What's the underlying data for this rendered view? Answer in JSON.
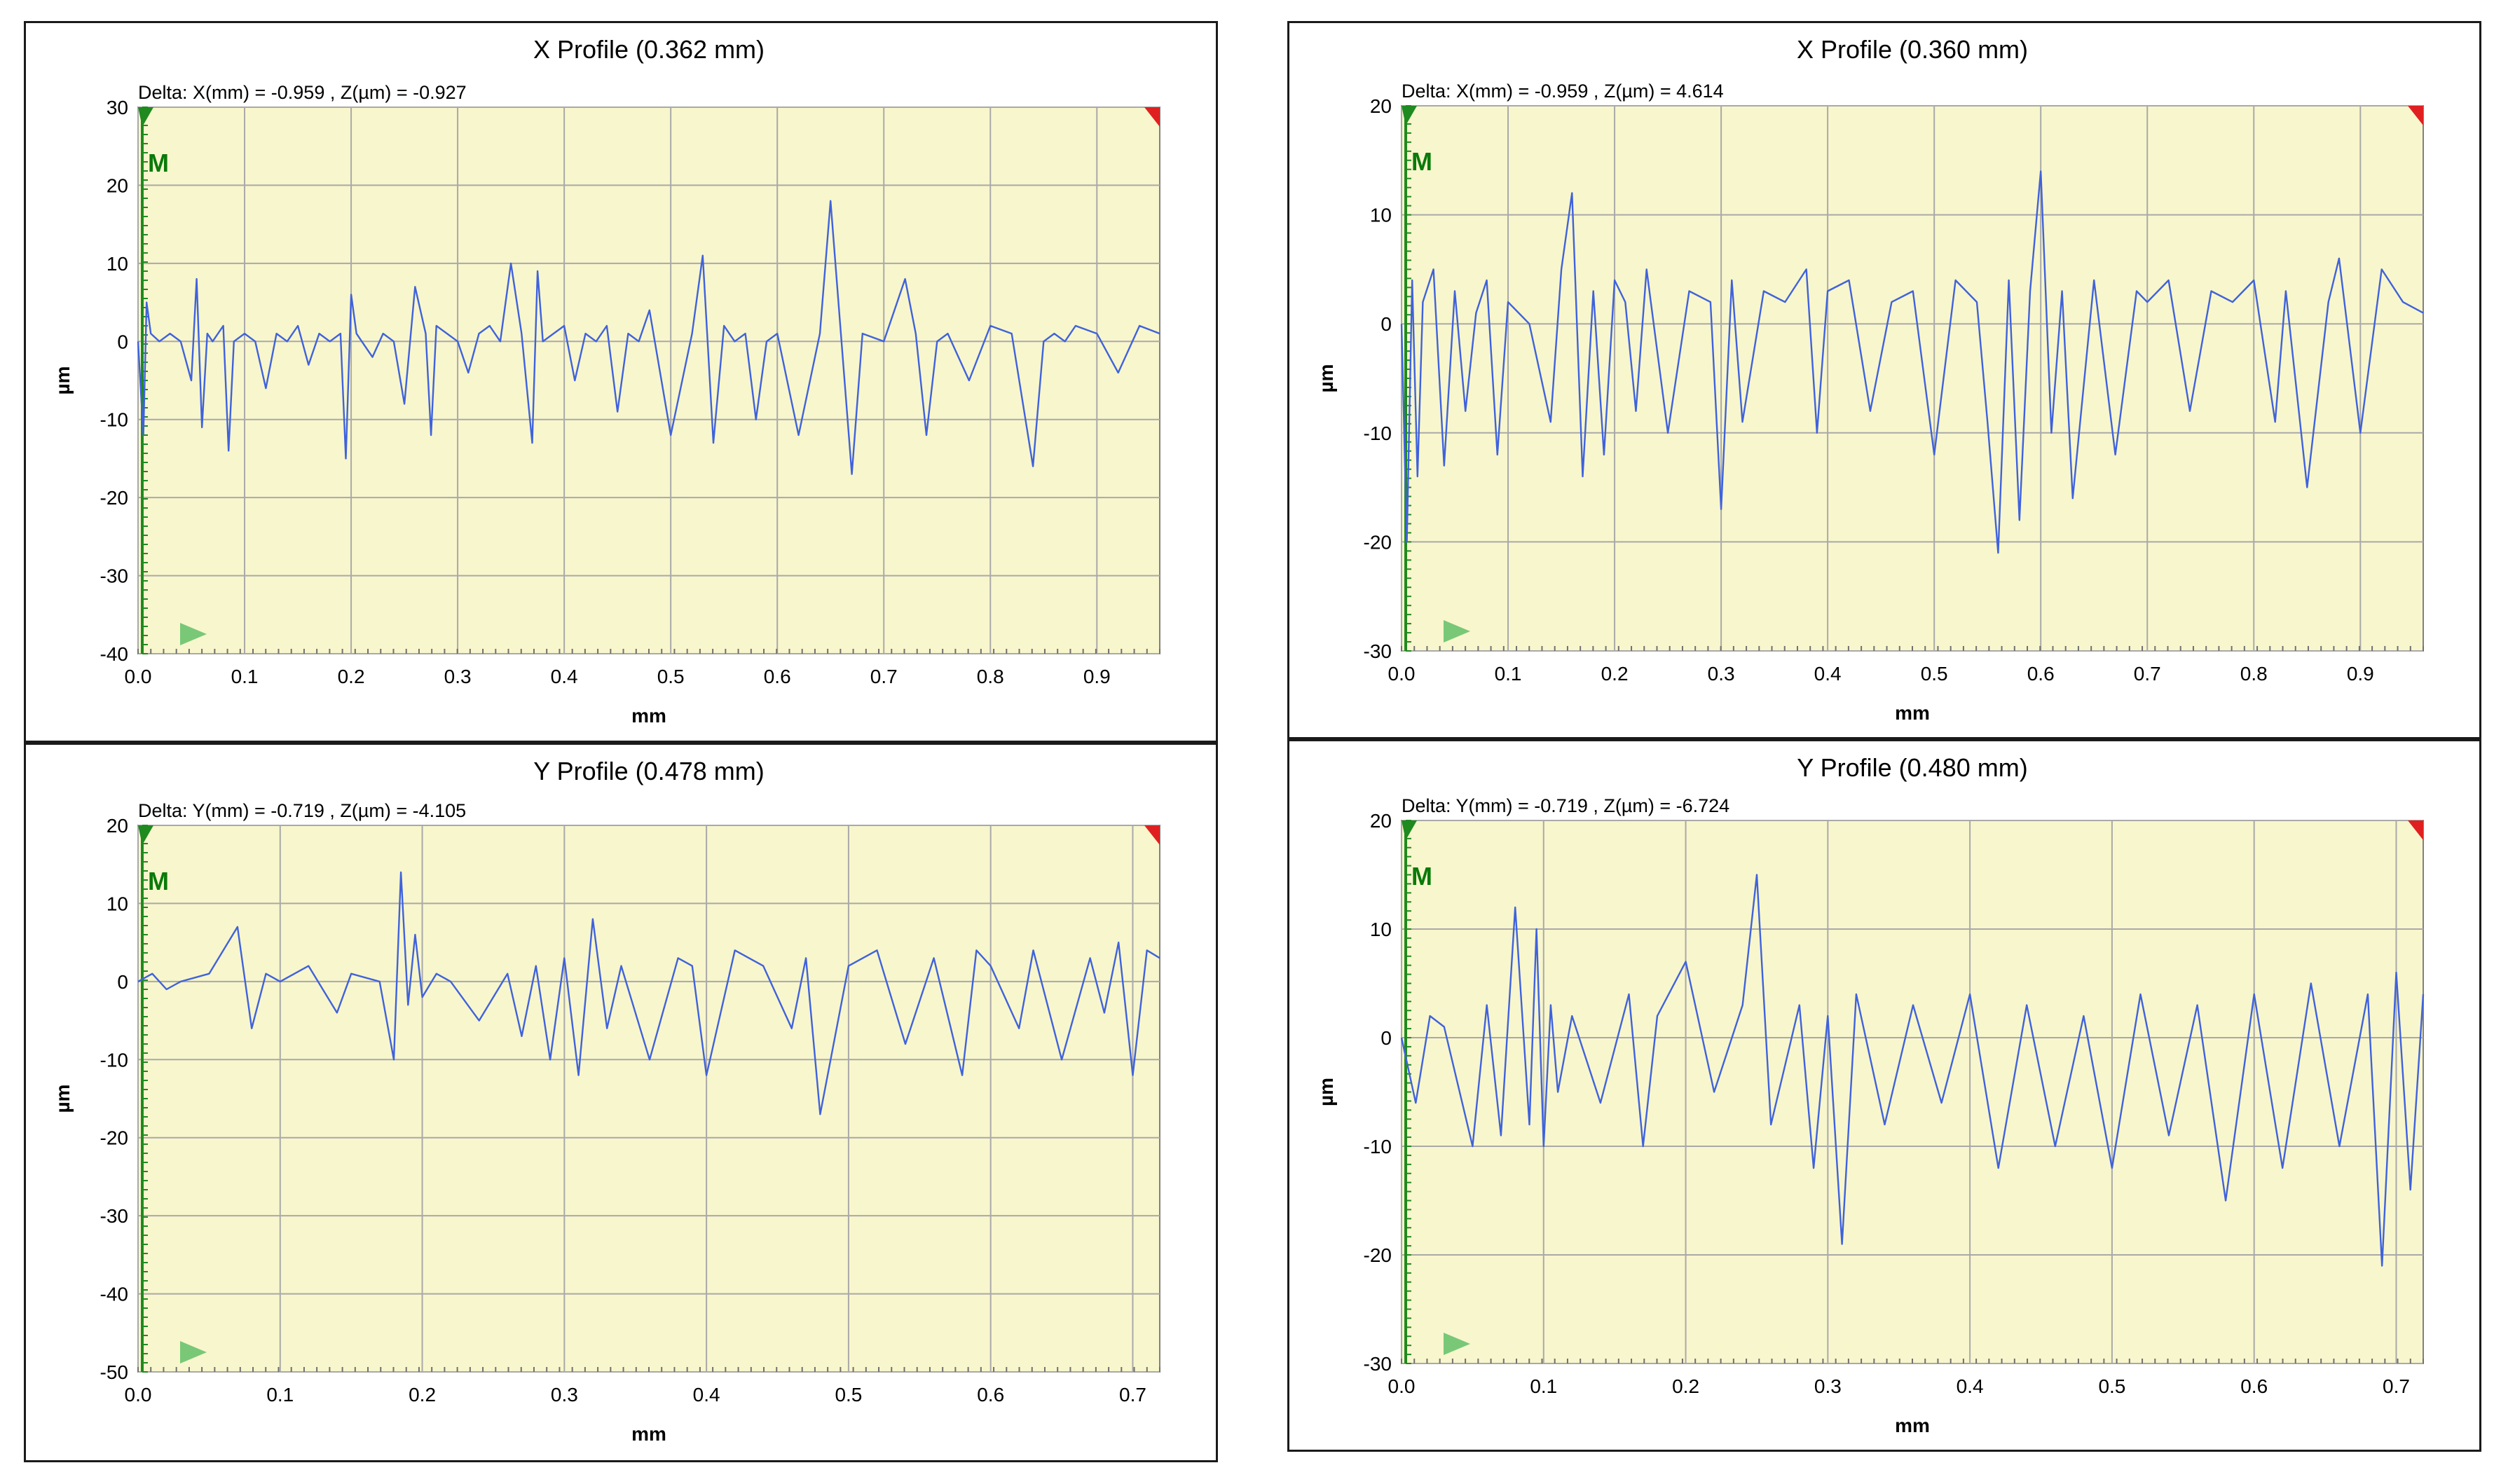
{
  "colors": {
    "plot_background": "#f8f6cc",
    "grid": "#a9a9a9",
    "line": "#3f62dc",
    "marker_green": "#1f8a1f",
    "marker_red": "#e02020",
    "play_marker": "#78c878"
  },
  "chart_data": [
    {
      "type": "line",
      "title": "X Profile (0.362 mm)",
      "delta": "Delta:  X(mm) = -0.959 ,  Z(µm) = -0.927",
      "xlabel": "mm",
      "ylabel": "µm",
      "xlim": [
        0,
        0.959
      ],
      "ylim": [
        -40,
        30
      ],
      "xticks": [
        0.0,
        0.1,
        0.2,
        0.3,
        0.4,
        0.5,
        0.6,
        0.7,
        0.8,
        0.9
      ],
      "xtick_labels": [
        "0.0",
        "0.1",
        "0.2",
        "0.3",
        "0.4",
        "0.5",
        "0.6",
        "0.7",
        "0.8",
        "0.9"
      ],
      "yticks": [
        30,
        20,
        10,
        0,
        -10,
        -20,
        -30,
        -40
      ],
      "ytick_labels": [
        "30",
        "20",
        "10",
        "0",
        "-10",
        "-20",
        "-30",
        "-40"
      ],
      "marker_label": "M",
      "grid": true,
      "x": [
        0,
        0.005,
        0.008,
        0.012,
        0.02,
        0.03,
        0.04,
        0.05,
        0.055,
        0.06,
        0.065,
        0.07,
        0.08,
        0.085,
        0.09,
        0.1,
        0.11,
        0.12,
        0.13,
        0.14,
        0.15,
        0.16,
        0.17,
        0.18,
        0.19,
        0.195,
        0.2,
        0.205,
        0.21,
        0.22,
        0.23,
        0.24,
        0.25,
        0.26,
        0.27,
        0.275,
        0.28,
        0.29,
        0.3,
        0.31,
        0.32,
        0.33,
        0.34,
        0.35,
        0.36,
        0.37,
        0.375,
        0.38,
        0.39,
        0.4,
        0.41,
        0.42,
        0.43,
        0.44,
        0.45,
        0.46,
        0.47,
        0.48,
        0.5,
        0.52,
        0.53,
        0.54,
        0.55,
        0.56,
        0.57,
        0.58,
        0.59,
        0.6,
        0.62,
        0.64,
        0.65,
        0.67,
        0.68,
        0.7,
        0.72,
        0.73,
        0.74,
        0.75,
        0.76,
        0.78,
        0.8,
        0.82,
        0.84,
        0.85,
        0.86,
        0.87,
        0.88,
        0.9,
        0.92,
        0.94,
        0.959
      ],
      "y": [
        0,
        -12,
        5,
        1,
        0,
        1,
        0,
        -5,
        8,
        -11,
        1,
        0,
        2,
        -14,
        0,
        1,
        0,
        -6,
        1,
        0,
        2,
        -3,
        1,
        0,
        1,
        -15,
        6,
        1,
        0,
        -2,
        1,
        0,
        -8,
        7,
        1,
        -12,
        2,
        1,
        0,
        -4,
        1,
        2,
        0,
        10,
        1,
        -13,
        9,
        0,
        1,
        2,
        -5,
        1,
        0,
        2,
        -9,
        1,
        0,
        4,
        -12,
        1,
        11,
        -13,
        2,
        0,
        1,
        -10,
        0,
        1,
        -12,
        1,
        18,
        -17,
        1,
        0,
        8,
        1,
        -12,
        0,
        1,
        -5,
        2,
        1,
        -16,
        0,
        1,
        0,
        2,
        1,
        -4,
        2,
        1
      ]
    },
    {
      "type": "line",
      "title": "X Profile (0.360 mm)",
      "delta": "Delta:  X(mm) = -0.959 ,  Z(µm) = 4.614",
      "xlabel": "mm",
      "ylabel": "µm",
      "xlim": [
        0,
        0.959
      ],
      "ylim": [
        -30,
        20
      ],
      "xticks": [
        0.0,
        0.1,
        0.2,
        0.3,
        0.4,
        0.5,
        0.6,
        0.7,
        0.8,
        0.9
      ],
      "xtick_labels": [
        "0.0",
        "0.1",
        "0.2",
        "0.3",
        "0.4",
        "0.5",
        "0.6",
        "0.7",
        "0.8",
        "0.9"
      ],
      "yticks": [
        20,
        10,
        0,
        -10,
        -20,
        -30
      ],
      "ytick_labels": [
        "20",
        "10",
        "0",
        "-10",
        "-20",
        "-30"
      ],
      "marker_label": "M",
      "grid": true,
      "x": [
        0,
        0.005,
        0.01,
        0.015,
        0.02,
        0.03,
        0.04,
        0.05,
        0.06,
        0.07,
        0.08,
        0.09,
        0.1,
        0.12,
        0.14,
        0.15,
        0.16,
        0.17,
        0.18,
        0.19,
        0.2,
        0.21,
        0.22,
        0.23,
        0.25,
        0.27,
        0.29,
        0.3,
        0.31,
        0.32,
        0.34,
        0.36,
        0.38,
        0.39,
        0.4,
        0.42,
        0.44,
        0.46,
        0.48,
        0.5,
        0.52,
        0.54,
        0.55,
        0.56,
        0.57,
        0.58,
        0.59,
        0.6,
        0.61,
        0.62,
        0.63,
        0.65,
        0.67,
        0.69,
        0.7,
        0.72,
        0.74,
        0.76,
        0.78,
        0.8,
        0.82,
        0.83,
        0.85,
        0.87,
        0.88,
        0.9,
        0.92,
        0.94,
        0.959
      ],
      "y": [
        0,
        -20,
        4,
        -14,
        2,
        5,
        -13,
        3,
        -8,
        1,
        4,
        -12,
        2,
        0,
        -9,
        5,
        12,
        -14,
        3,
        -12,
        4,
        2,
        -8,
        5,
        -10,
        3,
        2,
        -17,
        4,
        -9,
        3,
        2,
        5,
        -10,
        3,
        4,
        -8,
        2,
        3,
        -12,
        4,
        2,
        -9,
        -21,
        4,
        -18,
        3,
        14,
        -10,
        3,
        -16,
        4,
        -12,
        3,
        2,
        4,
        -8,
        3,
        2,
        4,
        -9,
        3,
        -15,
        2,
        6,
        -10,
        5,
        2,
        1
      ]
    },
    {
      "type": "line",
      "title": "Y Profile (0.478 mm)",
      "delta": "Delta:  Y(mm) = -0.719 ,  Z(µm) = -4.105",
      "xlabel": "mm",
      "ylabel": "µm",
      "xlim": [
        0,
        0.719
      ],
      "ylim": [
        -50,
        20
      ],
      "xticks": [
        0.0,
        0.1,
        0.2,
        0.3,
        0.4,
        0.5,
        0.6,
        0.7
      ],
      "xtick_labels": [
        "0.0",
        "0.1",
        "0.2",
        "0.3",
        "0.4",
        "0.5",
        "0.6",
        "0.7"
      ],
      "yticks": [
        20,
        10,
        0,
        -10,
        -20,
        -30,
        -40,
        -50
      ],
      "ytick_labels": [
        "20",
        "10",
        "0",
        "-10",
        "-20",
        "-30",
        "-40",
        "-50"
      ],
      "marker_label": "M",
      "grid": true,
      "x": [
        0,
        0.01,
        0.02,
        0.03,
        0.05,
        0.07,
        0.08,
        0.09,
        0.1,
        0.12,
        0.14,
        0.15,
        0.17,
        0.18,
        0.185,
        0.19,
        0.195,
        0.2,
        0.21,
        0.22,
        0.24,
        0.26,
        0.27,
        0.28,
        0.29,
        0.3,
        0.31,
        0.32,
        0.33,
        0.34,
        0.36,
        0.38,
        0.39,
        0.4,
        0.42,
        0.44,
        0.46,
        0.47,
        0.48,
        0.5,
        0.52,
        0.54,
        0.56,
        0.58,
        0.59,
        0.6,
        0.62,
        0.63,
        0.65,
        0.67,
        0.68,
        0.69,
        0.7,
        0.71,
        0.719
      ],
      "y": [
        0,
        1,
        -1,
        0,
        1,
        7,
        -6,
        1,
        0,
        2,
        -4,
        1,
        0,
        -10,
        14,
        -3,
        6,
        -2,
        1,
        0,
        -5,
        1,
        -7,
        2,
        -10,
        3,
        -12,
        8,
        -6,
        2,
        -10,
        3,
        2,
        -12,
        4,
        2,
        -6,
        3,
        -17,
        2,
        4,
        -8,
        3,
        -12,
        4,
        2,
        -6,
        4,
        -10,
        3,
        -4,
        5,
        -12,
        4,
        3
      ]
    },
    {
      "type": "line",
      "title": "Y Profile (0.480 mm)",
      "delta": "Delta:  Y(mm) = -0.719 ,  Z(µm) = -6.724",
      "xlabel": "mm",
      "ylabel": "µm",
      "xlim": [
        0,
        0.719
      ],
      "ylim": [
        -30,
        20
      ],
      "xticks": [
        0.0,
        0.1,
        0.2,
        0.3,
        0.4,
        0.5,
        0.6,
        0.7
      ],
      "xtick_labels": [
        "0.0",
        "0.1",
        "0.2",
        "0.3",
        "0.4",
        "0.5",
        "0.6",
        "0.7"
      ],
      "yticks": [
        20,
        10,
        0,
        -10,
        -20,
        -30
      ],
      "ytick_labels": [
        "20",
        "10",
        "0",
        "-10",
        "-20",
        "-30"
      ],
      "marker_label": "M",
      "grid": true,
      "x": [
        0,
        0.01,
        0.02,
        0.03,
        0.05,
        0.06,
        0.07,
        0.08,
        0.09,
        0.095,
        0.1,
        0.105,
        0.11,
        0.12,
        0.14,
        0.16,
        0.17,
        0.18,
        0.2,
        0.22,
        0.24,
        0.25,
        0.26,
        0.28,
        0.29,
        0.3,
        0.31,
        0.32,
        0.34,
        0.36,
        0.38,
        0.4,
        0.42,
        0.44,
        0.46,
        0.48,
        0.5,
        0.52,
        0.54,
        0.56,
        0.58,
        0.6,
        0.62,
        0.64,
        0.66,
        0.68,
        0.69,
        0.7,
        0.71,
        0.719
      ],
      "y": [
        0,
        -6,
        2,
        1,
        -10,
        3,
        -9,
        12,
        -8,
        10,
        -10,
        3,
        -5,
        2,
        -6,
        4,
        -10,
        2,
        7,
        -5,
        3,
        15,
        -8,
        3,
        -12,
        2,
        -19,
        4,
        -8,
        3,
        -6,
        4,
        -12,
        3,
        -10,
        2,
        -12,
        4,
        -9,
        3,
        -15,
        4,
        -12,
        5,
        -10,
        4,
        -21,
        6,
        -14,
        4
      ]
    }
  ]
}
